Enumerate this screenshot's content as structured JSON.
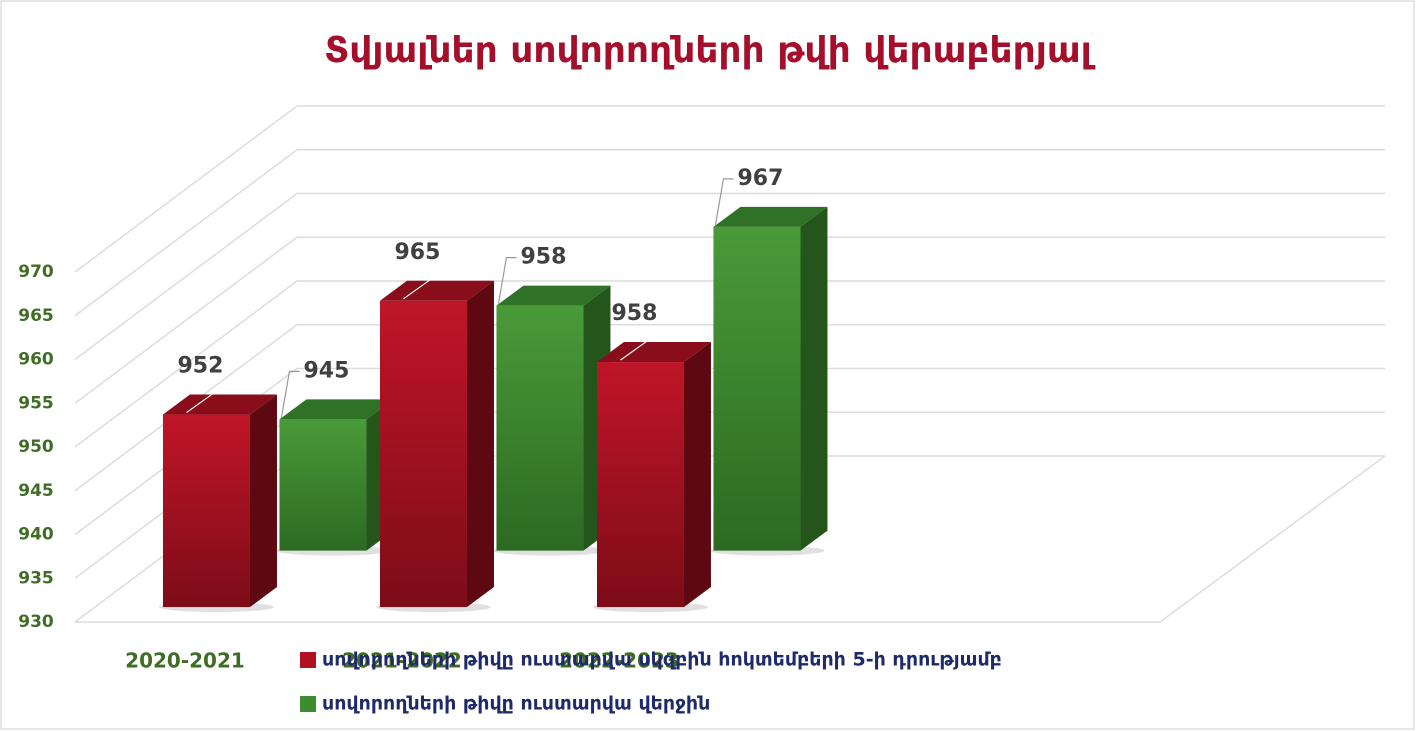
{
  "chart_data": {
    "type": "bar3d",
    "title": "Տվյալներ սովորողների թվի վերաբերյալ",
    "categories": [
      "2020-2021",
      "2021-2022",
      "2022-2023"
    ],
    "series": [
      {
        "name": "սովորողների թիվը ուստարվա սկզբին հոկտեմբերի 5-ի դրությամբ",
        "color": "#b01222",
        "values": [
          952,
          965,
          958
        ]
      },
      {
        "name": "սովորողների թիվը ուստարվա վերջին",
        "color": "#3d8c2f",
        "values": [
          945,
          958,
          967
        ]
      }
    ],
    "ylim": [
      930,
      970
    ],
    "yticks": [
      930,
      935,
      940,
      945,
      950,
      955,
      960,
      965,
      970
    ],
    "grid": true
  }
}
